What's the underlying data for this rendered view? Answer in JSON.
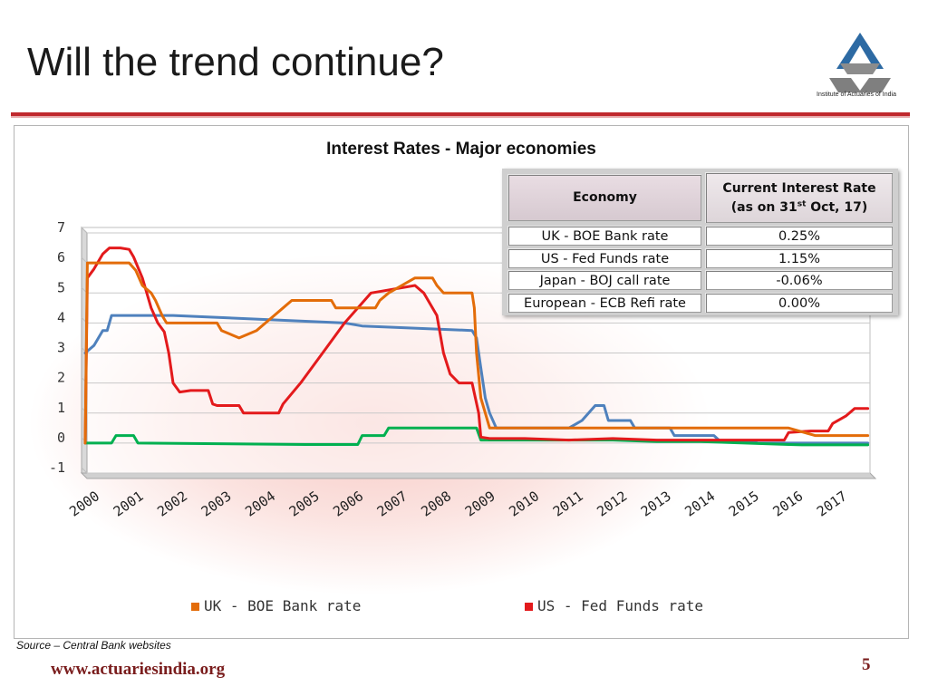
{
  "slide": {
    "title": "Will the trend continue?",
    "logo_caption": "Institute of Actuaries of India",
    "source": "Source – Central Bank websites",
    "footer_url": "www.actuariesindia.org",
    "page_number": "5"
  },
  "table": {
    "headers": {
      "economy": "Economy",
      "rate_line1": "Current Interest Rate",
      "rate_line2_prefix": "(as on 31",
      "rate_line2_sup": "st",
      "rate_line2_suffix": " Oct, 17)"
    },
    "rows": [
      {
        "economy": "UK - BOE Bank rate",
        "rate": "0.25%"
      },
      {
        "economy": "US - Fed Funds rate",
        "rate": "1.15%"
      },
      {
        "economy": "Japan - BOJ call rate",
        "rate": "-0.06%"
      },
      {
        "economy": "European - ECB Refi rate",
        "rate": "0.00%"
      }
    ]
  },
  "chart_data": {
    "type": "line",
    "title": "Interest Rates - Major economies",
    "xlabel": "",
    "ylabel": "",
    "ylim": [
      -1,
      7
    ],
    "xlim": [
      2000,
      2017.85
    ],
    "y_ticks": [
      -1,
      0,
      1,
      2,
      3,
      4,
      5,
      6,
      7
    ],
    "x_ticks": [
      "2000",
      "2001",
      "2002",
      "2003",
      "2004",
      "2005",
      "2006",
      "2007",
      "2008",
      "2009",
      "2010",
      "2011",
      "2012",
      "2013",
      "2014",
      "2015",
      "2016",
      "2017"
    ],
    "grid": true,
    "legend_position": "bottom",
    "legend_entries": [
      "UK - BOE Bank rate",
      "US - Fed Funds rate"
    ],
    "series": [
      {
        "name": "US - Fed Funds rate",
        "color": "#e31a1c",
        "points": [
          [
            2000,
            0
          ],
          [
            2000.05,
            5.5
          ],
          [
            2000.2,
            5.8
          ],
          [
            2000.4,
            6.3
          ],
          [
            2000.55,
            6.5
          ],
          [
            2000.8,
            6.5
          ],
          [
            2001.0,
            6.45
          ],
          [
            2001.1,
            6.2
          ],
          [
            2001.3,
            5.5
          ],
          [
            2001.5,
            4.5
          ],
          [
            2001.65,
            4.0
          ],
          [
            2001.8,
            3.7
          ],
          [
            2001.9,
            3.0
          ],
          [
            2002.0,
            2.0
          ],
          [
            2002.15,
            1.7
          ],
          [
            2002.4,
            1.75
          ],
          [
            2002.8,
            1.75
          ],
          [
            2002.9,
            1.3
          ],
          [
            2003.0,
            1.25
          ],
          [
            2003.5,
            1.25
          ],
          [
            2003.6,
            1.0
          ],
          [
            2004.4,
            1.0
          ],
          [
            2004.5,
            1.3
          ],
          [
            2004.9,
            2.0
          ],
          [
            2005.4,
            3.0
          ],
          [
            2005.9,
            4.0
          ],
          [
            2006.5,
            5.0
          ],
          [
            2007.5,
            5.25
          ],
          [
            2007.7,
            5.0
          ],
          [
            2008.0,
            4.25
          ],
          [
            2008.15,
            3.0
          ],
          [
            2008.3,
            2.3
          ],
          [
            2008.5,
            2.0
          ],
          [
            2008.8,
            2.0
          ],
          [
            2008.95,
            1.0
          ],
          [
            2009.0,
            0.2
          ],
          [
            2009.2,
            0.15
          ],
          [
            2010.0,
            0.15
          ],
          [
            2011.0,
            0.1
          ],
          [
            2012.0,
            0.15
          ],
          [
            2013.0,
            0.1
          ],
          [
            2014.0,
            0.1
          ],
          [
            2015.0,
            0.1
          ],
          [
            2015.9,
            0.1
          ],
          [
            2016.0,
            0.35
          ],
          [
            2016.5,
            0.4
          ],
          [
            2016.9,
            0.4
          ],
          [
            2017.0,
            0.65
          ],
          [
            2017.3,
            0.9
          ],
          [
            2017.5,
            1.15
          ],
          [
            2017.8,
            1.15
          ]
        ]
      },
      {
        "name": "UK - BOE Bank rate",
        "color": "#e36c09",
        "points": [
          [
            2000,
            0
          ],
          [
            2000.05,
            6.0
          ],
          [
            2001.0,
            6.0
          ],
          [
            2001.15,
            5.75
          ],
          [
            2001.3,
            5.25
          ],
          [
            2001.5,
            5.0
          ],
          [
            2001.6,
            4.75
          ],
          [
            2001.75,
            4.25
          ],
          [
            2001.85,
            4.0
          ],
          [
            2002.0,
            4.0
          ],
          [
            2003.0,
            4.0
          ],
          [
            2003.1,
            3.75
          ],
          [
            2003.5,
            3.5
          ],
          [
            2003.9,
            3.75
          ],
          [
            2004.1,
            4.0
          ],
          [
            2004.3,
            4.25
          ],
          [
            2004.5,
            4.5
          ],
          [
            2004.7,
            4.75
          ],
          [
            2005.6,
            4.75
          ],
          [
            2005.7,
            4.5
          ],
          [
            2006.6,
            4.5
          ],
          [
            2006.7,
            4.75
          ],
          [
            2006.9,
            5.0
          ],
          [
            2007.2,
            5.25
          ],
          [
            2007.5,
            5.5
          ],
          [
            2007.9,
            5.5
          ],
          [
            2008.0,
            5.25
          ],
          [
            2008.15,
            5.0
          ],
          [
            2008.8,
            5.0
          ],
          [
            2008.85,
            4.5
          ],
          [
            2008.9,
            3.0
          ],
          [
            2009.0,
            1.5
          ],
          [
            2009.1,
            1.0
          ],
          [
            2009.2,
            0.5
          ],
          [
            2010.0,
            0.5
          ],
          [
            2012.0,
            0.5
          ],
          [
            2014.0,
            0.5
          ],
          [
            2016.0,
            0.5
          ],
          [
            2016.6,
            0.25
          ],
          [
            2017.8,
            0.25
          ]
        ]
      }
    ],
    "unlabeled_series": [
      {
        "color": "#4f81bd",
        "points": [
          [
            2000,
            3.0
          ],
          [
            2000.2,
            3.25
          ],
          [
            2000.4,
            3.75
          ],
          [
            2000.5,
            3.75
          ],
          [
            2000.6,
            4.25
          ],
          [
            2001.0,
            4.25
          ],
          [
            2002.0,
            4.25
          ],
          [
            2005.9,
            4.0
          ],
          [
            2006.3,
            3.9
          ],
          [
            2008.8,
            3.75
          ],
          [
            2008.9,
            3.5
          ],
          [
            2009.0,
            2.5
          ],
          [
            2009.1,
            1.5
          ],
          [
            2009.2,
            1.0
          ],
          [
            2009.35,
            0.5
          ],
          [
            2010.0,
            0.5
          ],
          [
            2011.0,
            0.5
          ],
          [
            2011.3,
            0.75
          ],
          [
            2011.45,
            1.0
          ],
          [
            2011.6,
            1.25
          ],
          [
            2011.8,
            1.25
          ],
          [
            2011.9,
            0.75
          ],
          [
            2012.4,
            0.75
          ],
          [
            2012.5,
            0.5
          ],
          [
            2013.3,
            0.5
          ],
          [
            2013.4,
            0.25
          ],
          [
            2014.3,
            0.25
          ],
          [
            2014.45,
            0.05
          ],
          [
            2015.2,
            0.05
          ],
          [
            2015.3,
            0.0
          ],
          [
            2016.0,
            0.0
          ],
          [
            2017.8,
            0.0
          ]
        ]
      },
      {
        "color": "#00b050",
        "points": [
          [
            2000,
            0.0
          ],
          [
            2000.6,
            0.0
          ],
          [
            2000.7,
            0.25
          ],
          [
            2001.1,
            0.25
          ],
          [
            2001.2,
            0.0
          ],
          [
            2005.0,
            -0.05
          ],
          [
            2006.2,
            -0.05
          ],
          [
            2006.3,
            0.25
          ],
          [
            2006.8,
            0.25
          ],
          [
            2006.9,
            0.5
          ],
          [
            2008.0,
            0.5
          ],
          [
            2008.9,
            0.5
          ],
          [
            2009.0,
            0.1
          ],
          [
            2010.0,
            0.1
          ],
          [
            2011.0,
            0.1
          ],
          [
            2012.0,
            0.1
          ],
          [
            2013.0,
            0.05
          ],
          [
            2014.0,
            0.05
          ],
          [
            2015.0,
            0.0
          ],
          [
            2016.0,
            -0.05
          ],
          [
            2016.3,
            -0.06
          ],
          [
            2017.8,
            -0.06
          ]
        ]
      }
    ]
  }
}
